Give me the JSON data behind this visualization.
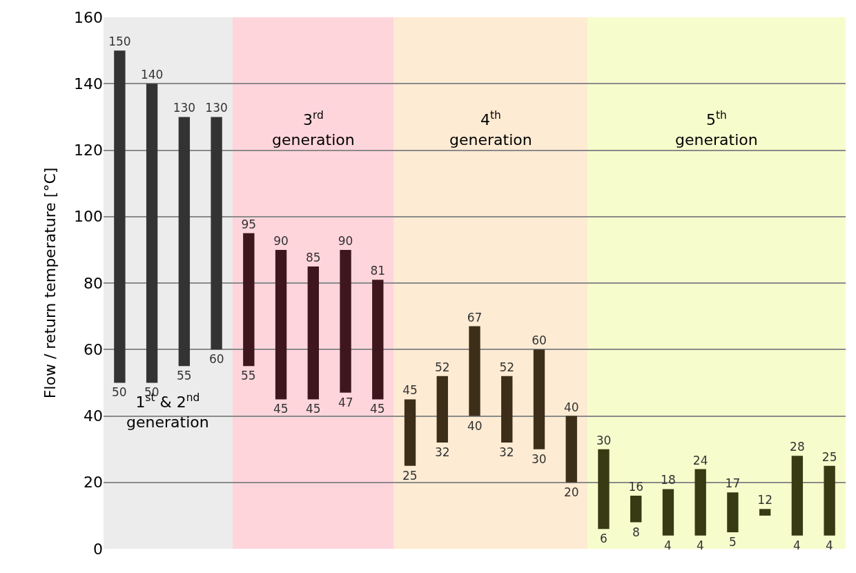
{
  "chart_data": {
    "type": "bar",
    "ylabel": "Flow / return temperature [°C]",
    "categories": [
      null,
      null,
      null,
      null,
      null,
      null,
      null,
      null,
      null,
      null,
      null,
      null,
      null,
      null,
      null,
      null,
      null,
      null,
      null,
      null,
      null,
      null,
      null
    ],
    "values": [
      100,
      90,
      75,
      70,
      40,
      45,
      40,
      43,
      36,
      20,
      20,
      27,
      20,
      30,
      20,
      24,
      8,
      14,
      20,
      12,
      2,
      24,
      21
    ],
    "base": [
      50,
      50,
      55,
      60,
      55,
      45,
      45,
      47,
      45,
      25,
      32,
      40,
      32,
      30,
      20,
      6,
      8,
      4,
      4,
      5,
      10,
      4,
      4
    ],
    "colors": [
      "#333333",
      "#333333",
      "#333333",
      "#333333",
      "#3d171c",
      "#3d171c",
      "#3d171c",
      "#3d171c",
      "#3d171c",
      "#3d2e1a",
      "#3d2e1a",
      "#3d2e1a",
      "#3d2e1a",
      "#3d2e1a",
      "#3d2e1a",
      "#383a14",
      "#383a14",
      "#383a14",
      "#383a14",
      "#383a14",
      "#383a14",
      "#383a14",
      "#383a14"
    ],
    "value_labels": [
      "150",
      "140",
      "130",
      "130",
      "95",
      "90",
      "85",
      "90",
      "81",
      "45",
      "52",
      "67",
      "52",
      "60",
      "40",
      "30",
      "16",
      "18",
      "24",
      "17",
      "12",
      "28",
      "25"
    ],
    "annotations": [
      {
        "text": "50",
        "y": 50
      },
      {
        "text": "50",
        "y": 50
      },
      {
        "text": "55",
        "y": 55
      },
      {
        "text": "60",
        "y": 60
      },
      {
        "text": "55",
        "y": 55
      },
      {
        "text": "45",
        "y": 45
      },
      {
        "text": "45",
        "y": 45
      },
      {
        "text": "47",
        "y": 47
      },
      {
        "text": "45",
        "y": 45
      },
      {
        "text": "25",
        "y": 25
      },
      {
        "text": "32",
        "y": 32
      },
      {
        "text": "40",
        "y": 40
      },
      {
        "text": "32",
        "y": 32
      },
      {
        "text": "30",
        "y": 30
      },
      {
        "text": "20",
        "y": 20
      },
      {
        "text": "6",
        "y": 6
      },
      {
        "text": "8",
        "y": 8
      },
      {
        "text": "4",
        "y": 4
      },
      {
        "text": "4",
        "y": 4
      },
      {
        "text": "5",
        "y": 5
      },
      {
        "text": "4",
        "y": 4
      },
      {
        "text": "4",
        "y": 4
      },
      "1$^{st}$ & 2$^{nd}$ generation",
      "3$^{rd}$ generation",
      "4$^{th}$ generation",
      "5$^{th}$ generation"
    ],
    "ylim": [
      0,
      160
    ],
    "yticks": [
      0,
      20,
      40,
      60,
      80,
      100,
      120,
      140,
      160
    ],
    "grid": "y",
    "tick_labels": "y",
    "legend": false
  }
}
